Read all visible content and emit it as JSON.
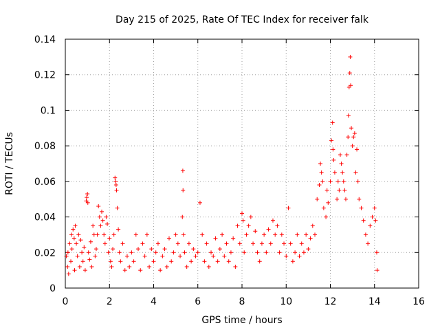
{
  "chart_data": {
    "type": "scatter",
    "title": "Day 215 of 2025, Rate Of TEC Index for receiver falk",
    "xlabel": "GPS time / hours",
    "ylabel": "ROTI / TECUs",
    "xlim": [
      0,
      16
    ],
    "ylim": [
      0,
      0.14
    ],
    "xticks": [
      0,
      2,
      4,
      6,
      8,
      10,
      12,
      14,
      16
    ],
    "yticks": [
      0,
      0.02,
      0.04,
      0.06,
      0.08,
      0.1,
      0.12,
      0.14
    ],
    "xtick_labels": [
      "0",
      "2",
      "4",
      "6",
      "8",
      "10",
      "12",
      "14",
      "16"
    ],
    "ytick_labels": [
      "0",
      "0.02",
      "0.04",
      "0.06",
      "0.08",
      "0.1",
      "0.12",
      "0.14"
    ],
    "grid": true,
    "marker": "+",
    "color": "#ff0000",
    "series": [
      {
        "name": "ROTI",
        "points": [
          [
            0.05,
            0.018
          ],
          [
            0.1,
            0.012
          ],
          [
            0.12,
            0.02
          ],
          [
            0.15,
            0.008
          ],
          [
            0.2,
            0.025
          ],
          [
            0.25,
            0.015
          ],
          [
            0.28,
            0.03
          ],
          [
            0.3,
            0.022
          ],
          [
            0.35,
            0.033
          ],
          [
            0.4,
            0.028
          ],
          [
            0.42,
            0.01
          ],
          [
            0.45,
            0.035
          ],
          [
            0.5,
            0.025
          ],
          [
            0.55,
            0.018
          ],
          [
            0.6,
            0.03
          ],
          [
            0.65,
            0.012
          ],
          [
            0.7,
            0.027
          ],
          [
            0.75,
            0.02
          ],
          [
            0.8,
            0.015
          ],
          [
            0.85,
            0.023
          ],
          [
            0.9,
            0.01
          ],
          [
            0.95,
            0.049
          ],
          [
            0.97,
            0.051
          ],
          [
            1.0,
            0.053
          ],
          [
            1.02,
            0.048
          ],
          [
            1.05,
            0.02
          ],
          [
            1.1,
            0.016
          ],
          [
            1.15,
            0.026
          ],
          [
            1.2,
            0.012
          ],
          [
            1.25,
            0.035
          ],
          [
            1.3,
            0.03
          ],
          [
            1.35,
            0.018
          ],
          [
            1.4,
            0.022
          ],
          [
            1.45,
            0.03
          ],
          [
            1.5,
            0.046
          ],
          [
            1.55,
            0.04
          ],
          [
            1.6,
            0.035
          ],
          [
            1.65,
            0.043
          ],
          [
            1.7,
            0.038
          ],
          [
            1.75,
            0.03
          ],
          [
            1.8,
            0.025
          ],
          [
            1.85,
            0.04
          ],
          [
            1.9,
            0.036
          ],
          [
            1.95,
            0.02
          ],
          [
            2.0,
            0.028
          ],
          [
            2.05,
            0.015
          ],
          [
            2.1,
            0.012
          ],
          [
            2.15,
            0.022
          ],
          [
            2.2,
            0.03
          ],
          [
            2.25,
            0.062
          ],
          [
            2.28,
            0.06
          ],
          [
            2.3,
            0.058
          ],
          [
            2.32,
            0.055
          ],
          [
            2.35,
            0.045
          ],
          [
            2.4,
            0.033
          ],
          [
            2.45,
            0.02
          ],
          [
            2.5,
            0.015
          ],
          [
            2.6,
            0.025
          ],
          [
            2.7,
            0.01
          ],
          [
            2.8,
            0.018
          ],
          [
            2.9,
            0.012
          ],
          [
            3.0,
            0.02
          ],
          [
            3.1,
            0.015
          ],
          [
            3.2,
            0.03
          ],
          [
            3.3,
            0.022
          ],
          [
            3.4,
            0.01
          ],
          [
            3.5,
            0.025
          ],
          [
            3.6,
            0.018
          ],
          [
            3.7,
            0.03
          ],
          [
            3.8,
            0.012
          ],
          [
            3.9,
            0.022
          ],
          [
            4.0,
            0.015
          ],
          [
            4.1,
            0.02
          ],
          [
            4.2,
            0.025
          ],
          [
            4.3,
            0.01
          ],
          [
            4.4,
            0.018
          ],
          [
            4.5,
            0.022
          ],
          [
            4.6,
            0.012
          ],
          [
            4.7,
            0.028
          ],
          [
            4.8,
            0.015
          ],
          [
            4.9,
            0.02
          ],
          [
            5.0,
            0.03
          ],
          [
            5.1,
            0.025
          ],
          [
            5.2,
            0.018
          ],
          [
            5.3,
            0.04
          ],
          [
            5.32,
            0.066
          ],
          [
            5.33,
            0.055
          ],
          [
            5.35,
            0.03
          ],
          [
            5.4,
            0.02
          ],
          [
            5.5,
            0.012
          ],
          [
            5.6,
            0.025
          ],
          [
            5.7,
            0.015
          ],
          [
            5.8,
            0.022
          ],
          [
            5.9,
            0.018
          ],
          [
            6.0,
            0.02
          ],
          [
            6.1,
            0.048
          ],
          [
            6.2,
            0.03
          ],
          [
            6.3,
            0.015
          ],
          [
            6.4,
            0.025
          ],
          [
            6.5,
            0.012
          ],
          [
            6.6,
            0.02
          ],
          [
            6.7,
            0.018
          ],
          [
            6.8,
            0.028
          ],
          [
            6.9,
            0.015
          ],
          [
            7.0,
            0.022
          ],
          [
            7.1,
            0.03
          ],
          [
            7.2,
            0.018
          ],
          [
            7.3,
            0.025
          ],
          [
            7.4,
            0.015
          ],
          [
            7.5,
            0.02
          ],
          [
            7.6,
            0.028
          ],
          [
            7.7,
            0.012
          ],
          [
            7.8,
            0.035
          ],
          [
            7.9,
            0.025
          ],
          [
            8.0,
            0.042
          ],
          [
            8.05,
            0.038
          ],
          [
            8.1,
            0.02
          ],
          [
            8.2,
            0.03
          ],
          [
            8.3,
            0.035
          ],
          [
            8.4,
            0.04
          ],
          [
            8.5,
            0.025
          ],
          [
            8.6,
            0.032
          ],
          [
            8.7,
            0.02
          ],
          [
            8.8,
            0.015
          ],
          [
            8.9,
            0.025
          ],
          [
            9.0,
            0.03
          ],
          [
            9.1,
            0.02
          ],
          [
            9.2,
            0.033
          ],
          [
            9.3,
            0.025
          ],
          [
            9.4,
            0.038
          ],
          [
            9.5,
            0.03
          ],
          [
            9.6,
            0.035
          ],
          [
            9.7,
            0.02
          ],
          [
            9.8,
            0.03
          ],
          [
            9.9,
            0.025
          ],
          [
            10.0,
            0.018
          ],
          [
            10.1,
            0.045
          ],
          [
            10.2,
            0.025
          ],
          [
            10.3,
            0.015
          ],
          [
            10.4,
            0.02
          ],
          [
            10.5,
            0.03
          ],
          [
            10.6,
            0.018
          ],
          [
            10.7,
            0.025
          ],
          [
            10.8,
            0.02
          ],
          [
            10.9,
            0.03
          ],
          [
            11.0,
            0.022
          ],
          [
            11.1,
            0.028
          ],
          [
            11.2,
            0.035
          ],
          [
            11.3,
            0.03
          ],
          [
            11.4,
            0.05
          ],
          [
            11.5,
            0.058
          ],
          [
            11.55,
            0.07
          ],
          [
            11.6,
            0.065
          ],
          [
            11.65,
            0.06
          ],
          [
            11.7,
            0.045
          ],
          [
            11.8,
            0.04
          ],
          [
            11.85,
            0.055
          ],
          [
            11.9,
            0.048
          ],
          [
            12.0,
            0.06
          ],
          [
            12.05,
            0.083
          ],
          [
            12.1,
            0.093
          ],
          [
            12.12,
            0.078
          ],
          [
            12.15,
            0.072
          ],
          [
            12.2,
            0.065
          ],
          [
            12.3,
            0.05
          ],
          [
            12.35,
            0.06
          ],
          [
            12.4,
            0.055
          ],
          [
            12.45,
            0.075
          ],
          [
            12.5,
            0.07
          ],
          [
            12.55,
            0.065
          ],
          [
            12.6,
            0.06
          ],
          [
            12.65,
            0.055
          ],
          [
            12.7,
            0.05
          ],
          [
            12.75,
            0.075
          ],
          [
            12.8,
            0.085
          ],
          [
            12.82,
            0.097
          ],
          [
            12.85,
            0.113
          ],
          [
            12.88,
            0.121
          ],
          [
            12.9,
            0.13
          ],
          [
            12.92,
            0.114
          ],
          [
            12.95,
            0.09
          ],
          [
            13.0,
            0.08
          ],
          [
            13.05,
            0.085
          ],
          [
            13.1,
            0.087
          ],
          [
            13.15,
            0.065
          ],
          [
            13.2,
            0.078
          ],
          [
            13.25,
            0.06
          ],
          [
            13.3,
            0.05
          ],
          [
            13.4,
            0.045
          ],
          [
            13.5,
            0.038
          ],
          [
            13.6,
            0.03
          ],
          [
            13.7,
            0.025
          ],
          [
            13.8,
            0.035
          ],
          [
            13.9,
            0.04
          ],
          [
            14.0,
            0.045
          ],
          [
            14.05,
            0.038
          ],
          [
            14.1,
            0.02
          ],
          [
            14.12,
            0.01
          ]
        ]
      }
    ]
  }
}
